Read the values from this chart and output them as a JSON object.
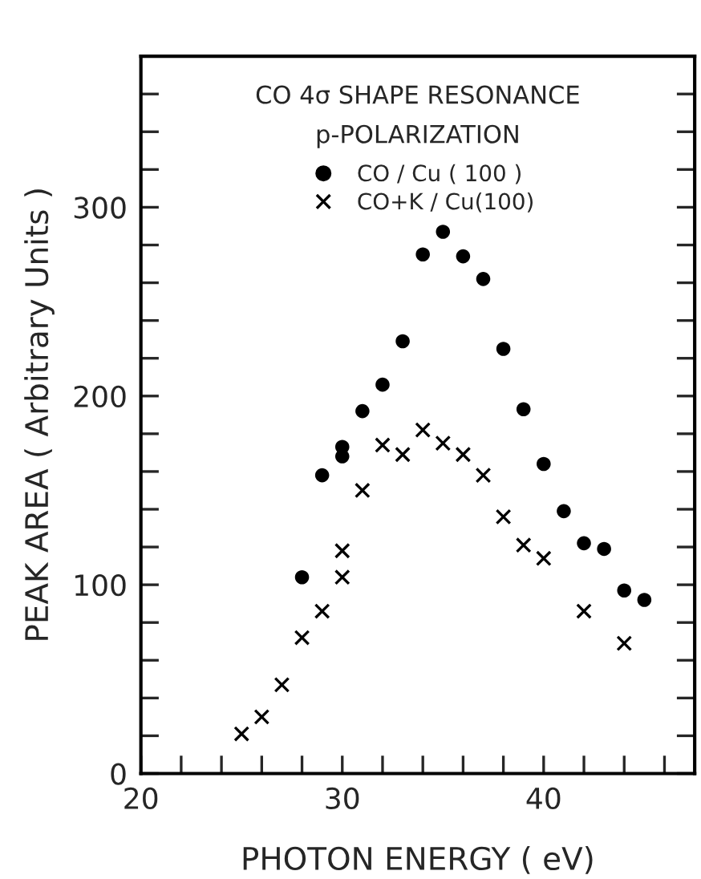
{
  "chart_data": {
    "type": "scatter",
    "title": "CO 4σ SHAPE RESONANCE",
    "subtitle": "p-POLARIZATION",
    "xlabel": "PHOTON ENERGY ( eV)",
    "ylabel": "PEAK AREA ( Arbitrary Units )",
    "series": [
      {
        "name": "CO / Cu ( 100 )",
        "color": "#000000",
        "marker": "circle",
        "x": [
          28,
          29,
          30,
          30,
          31,
          32,
          33,
          34,
          35,
          36,
          37,
          38,
          39,
          40,
          41,
          42,
          43,
          44,
          45
        ],
        "values": [
          104,
          158,
          168,
          173,
          192,
          206,
          229,
          275,
          287,
          274,
          262,
          225,
          193,
          164,
          139,
          122,
          119,
          97,
          92
        ]
      },
      {
        "name": "CO+K / Cu(100)",
        "color": "#000000",
        "marker": "cross",
        "x": [
          25,
          26,
          27,
          28,
          29,
          30,
          30,
          31,
          32,
          33,
          34,
          35,
          36,
          37,
          38,
          39,
          40,
          42,
          44
        ],
        "values": [
          21,
          30,
          47,
          72,
          86,
          104,
          118,
          150,
          174,
          169,
          182,
          175,
          169,
          158,
          136,
          121,
          114,
          86,
          69
        ]
      }
    ],
    "xlim": [
      20,
      47.5
    ],
    "ylim": [
      0,
      380
    ],
    "xticks": [
      20,
      {
        "value": 22,
        "label": null
      },
      {
        "value": 24,
        "label": null
      },
      {
        "value": 26,
        "label": null
      },
      {
        "value": 28,
        "label": null
      },
      30,
      {
        "value": 32,
        "label": null
      },
      {
        "value": 34,
        "label": null
      },
      {
        "value": 36,
        "label": null
      },
      {
        "value": 38,
        "label": null
      },
      40,
      {
        "value": 42,
        "label": null
      },
      {
        "value": 44,
        "label": null
      },
      {
        "value": 46,
        "label": null
      }
    ],
    "yticks": [
      0,
      {
        "value": 20,
        "label": null
      },
      {
        "value": 40,
        "label": null
      },
      {
        "value": 60,
        "label": null
      },
      {
        "value": 80,
        "label": null
      },
      100,
      {
        "value": 120,
        "label": null
      },
      {
        "value": 140,
        "label": null
      },
      {
        "value": 160,
        "label": null
      },
      {
        "value": 180,
        "label": null
      },
      200,
      {
        "value": 220,
        "label": null
      },
      {
        "value": 240,
        "label": null
      },
      {
        "value": 260,
        "label": null
      },
      {
        "value": 280,
        "label": null
      },
      300,
      {
        "value": 320,
        "label": null
      },
      {
        "value": 340,
        "label": null
      },
      {
        "value": 360,
        "label": null
      }
    ],
    "grid": false,
    "legend": "top"
  }
}
